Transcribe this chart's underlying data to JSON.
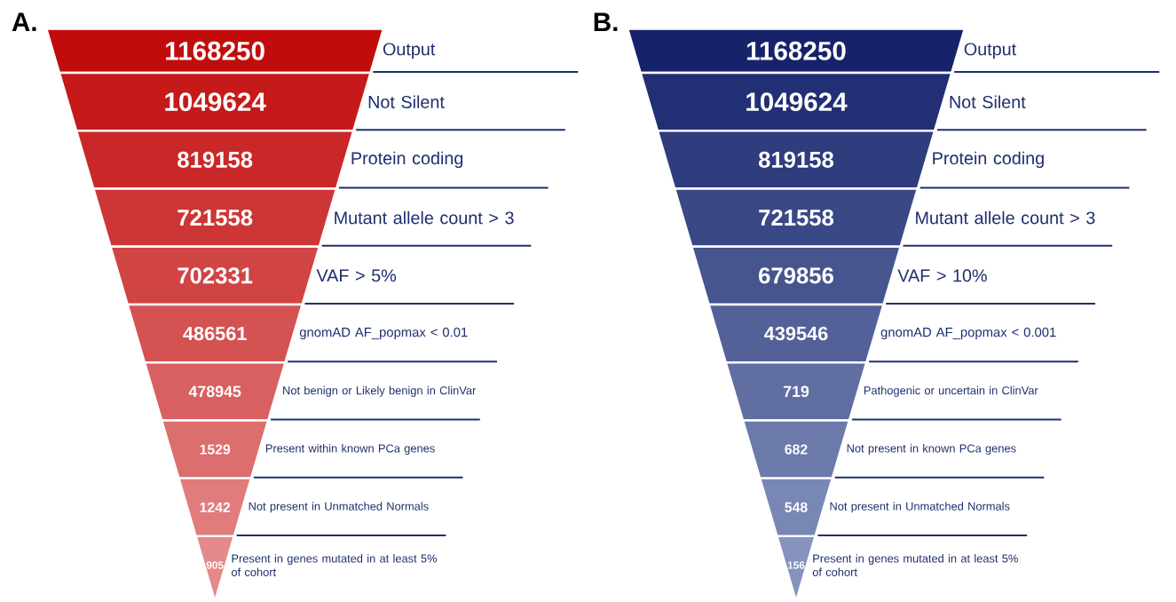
{
  "chart_data": [
    {
      "type": "other",
      "title": "A.",
      "data_labels": true,
      "categories": [
        "Output",
        "Not Silent",
        "Protein coding",
        "Mutant allele count > 3",
        "VAF > 5%",
        "gnomAD AF_popmax < 0.01",
        "Not benign or Likely benign in ClinVar",
        "Present within known PCa genes",
        "Not present in Unmatched Normals",
        "Present in genes mutated in at least 5% of cohort"
      ],
      "values": [
        1168250,
        1049624,
        819158,
        721558,
        702331,
        486561,
        478945,
        1529,
        1242,
        905
      ],
      "colors": [
        "#c20c0c",
        "#c61a1a",
        "#ca2828",
        "#cd3636",
        "#d14444",
        "#d55252",
        "#d96060",
        "#dc6e6e",
        "#e07c7c",
        "#e48a8a"
      ]
    },
    {
      "type": "other",
      "title": "B.",
      "data_labels": true,
      "categories": [
        "Output",
        "Not Silent",
        "Protein coding",
        "Mutant allele count > 3",
        "VAF > 10%",
        "gnomAD AF_popmax < 0.001",
        "Pathogenic or uncertain in ClinVar",
        "Not present in known PCa genes",
        "Not present in Unmatched Normals",
        "Present in genes mutated in at least 5% of cohort"
      ],
      "values": [
        1168250,
        1049624,
        819158,
        721558,
        679856,
        439546,
        719,
        682,
        548,
        156
      ],
      "colors": [
        "#16236b",
        "#222f74",
        "#2f3c7d",
        "#3b4886",
        "#47558f",
        "#546199",
        "#606ea2",
        "#6c7aab",
        "#7987b4",
        "#8593bd"
      ]
    }
  ]
}
